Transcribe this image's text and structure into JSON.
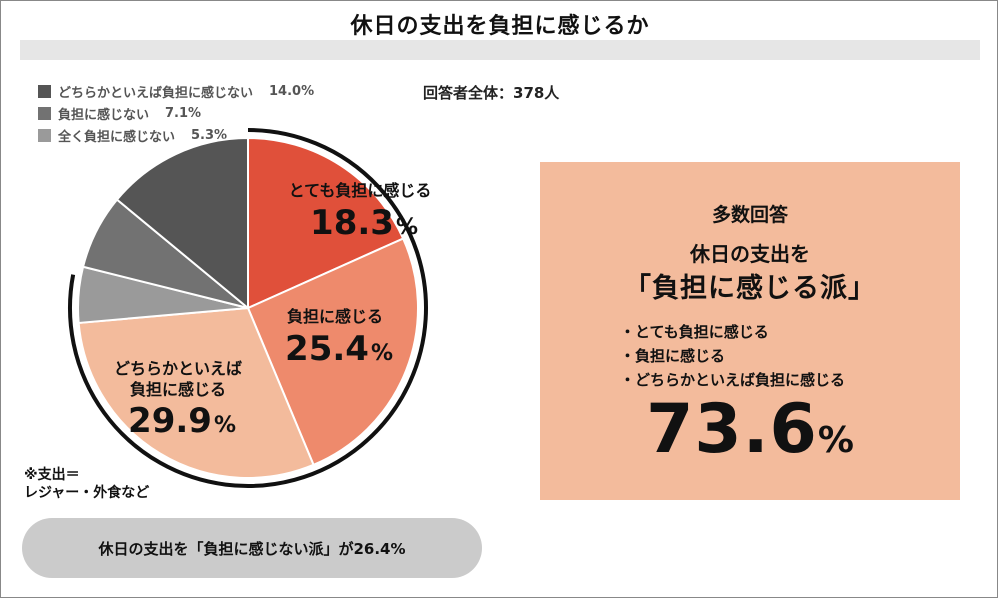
{
  "title": "休日の支出を負担に感じるか",
  "respondents": "回答者全体：378人",
  "note": [
    "※支出＝",
    "レジャー・外食など"
  ],
  "minority_summary": "休日の支出を「負担に感じない派」が26.4%",
  "majority_box": {
    "heading": "多数回答",
    "subtitle_line1": "休日の支出を",
    "subtitle_line2": "「負担に感じる派」",
    "items": [
      "・とても負担に感じる",
      "・負担に感じる",
      "・どちらかといえば負担に感じる"
    ],
    "total_value": "73.6",
    "total_unit": "%"
  },
  "colors": {
    "very": "#e0503a",
    "feel": "#ee8a6c",
    "somewhat": "#f3bb9c",
    "notmuch": "#9a9a9a",
    "not": "#727272",
    "notatall": "#555555"
  },
  "chart_data": {
    "type": "pie",
    "total_respondents": 378,
    "slices": [
      {
        "name": "とても負担に感じる",
        "value": 18.3,
        "color": "#e0503a",
        "label_lines": [
          "とても負担に感じる"
        ],
        "value_text": "18.3",
        "unit": "%"
      },
      {
        "name": "負担に感じる",
        "value": 25.4,
        "color": "#ee8a6c",
        "label_lines": [
          "負担に感じる"
        ],
        "value_text": "25.4",
        "unit": "%"
      },
      {
        "name": "どちらかといえば負担に感じる",
        "value": 29.9,
        "color": "#f3bb9c",
        "label_lines": [
          "どちらかといえば",
          "負担に感じる"
        ],
        "value_text": "29.9",
        "unit": "%"
      },
      {
        "name": "全く負担に感じない",
        "value": 5.3,
        "color": "#9a9a9a"
      },
      {
        "name": "負担に感じない",
        "value": 7.1,
        "color": "#727272"
      },
      {
        "name": "どちらかといえば負担に感じない",
        "value": 14.0,
        "color": "#555555"
      }
    ],
    "legend": [
      {
        "label": "どちらかといえば負担に感じない",
        "value": "14.0%",
        "color": "#555555"
      },
      {
        "label": "負担に感じない",
        "value": "7.1%",
        "color": "#727272"
      },
      {
        "label": "全く負担に感じない",
        "value": "5.3%",
        "color": "#9a9a9a"
      }
    ],
    "start": "12 o'clock",
    "direction": "clockwise"
  }
}
